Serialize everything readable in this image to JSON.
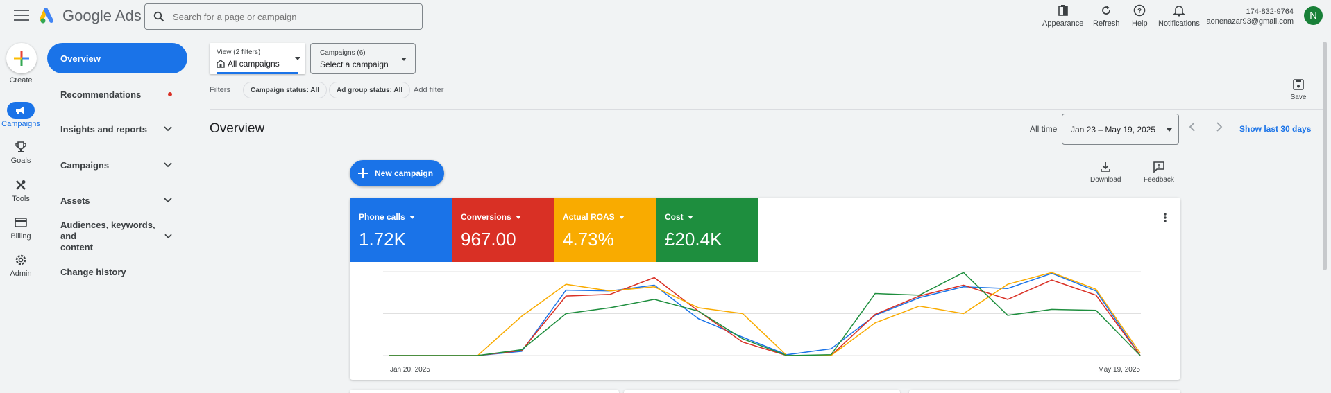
{
  "header": {
    "app_name": "Google Ads",
    "search_placeholder": "Search for a page or campaign",
    "buttons": {
      "appearance": "Appearance",
      "refresh": "Refresh",
      "help": "Help",
      "notifications": "Notifications"
    },
    "account_id": "174-832-9764",
    "account_email": "aonenazar93@gmail.com",
    "avatar_letter": "N"
  },
  "rail": {
    "create": "Create",
    "campaigns": "Campaigns",
    "goals": "Goals",
    "tools": "Tools",
    "billing": "Billing",
    "admin": "Admin"
  },
  "nav": {
    "overview": "Overview",
    "recommendations": "Recommendations",
    "insights": "Insights and reports",
    "campaigns": "Campaigns",
    "assets": "Assets",
    "audiences_line1": "Audiences, keywords, and",
    "audiences_line2": "content",
    "change_history": "Change history"
  },
  "view": {
    "sub": "View (2 filters)",
    "main": "All campaigns"
  },
  "campaign_select": {
    "sub": "Campaigns (6)",
    "main": "Select a campaign"
  },
  "filters": {
    "label": "Filters",
    "campaign_status": "Campaign status: All",
    "adgroup_status": "Ad group status: All",
    "add": "Add filter",
    "save": "Save"
  },
  "overview": {
    "title": "Overview",
    "all_time": "All time",
    "date_range": "Jan 23 – May 19, 2025",
    "show_last": "Show last 30 days",
    "new_campaign": "New campaign",
    "download": "Download",
    "feedback": "Feedback"
  },
  "metrics": [
    {
      "label": "Phone calls",
      "value": "1.72K",
      "color": "#1a73e8"
    },
    {
      "label": "Conversions",
      "value": "967.00",
      "color": "#d93025"
    },
    {
      "label": "Actual ROAS",
      "value": "4.73%",
      "color": "#f9ab00"
    },
    {
      "label": "Cost",
      "value": "£20.4K",
      "color": "#1e8e3e"
    }
  ],
  "chart_data": {
    "type": "line",
    "x_start_label": "Jan 20, 2025",
    "x_end_label": "May 19, 2025",
    "grid": true,
    "series": [
      {
        "color": "#1a73e8",
        "values": [
          0,
          0,
          0,
          0.05,
          0.78,
          0.77,
          0.84,
          0.44,
          0.22,
          0.01,
          0.08,
          0.48,
          0.69,
          0.82,
          0.8,
          0.98,
          0.77,
          0
        ]
      },
      {
        "color": "#d93025",
        "values": [
          0,
          0,
          0,
          0.06,
          0.71,
          0.73,
          0.93,
          0.53,
          0.16,
          0,
          0,
          0.49,
          0.71,
          0.84,
          0.67,
          0.9,
          0.72,
          0
        ]
      },
      {
        "color": "#f9ab00",
        "values": [
          0,
          0,
          0,
          0.47,
          0.85,
          0.77,
          0.82,
          0.57,
          0.5,
          0,
          0,
          0.39,
          0.59,
          0.5,
          0.85,
          0.99,
          0.79,
          0.03
        ]
      },
      {
        "color": "#1e8e3e",
        "values": [
          0,
          0,
          0,
          0.07,
          0.5,
          0.57,
          0.67,
          0.53,
          0.2,
          0,
          0.01,
          0.74,
          0.72,
          0.99,
          0.48,
          0.55,
          0.54,
          0
        ]
      }
    ]
  }
}
